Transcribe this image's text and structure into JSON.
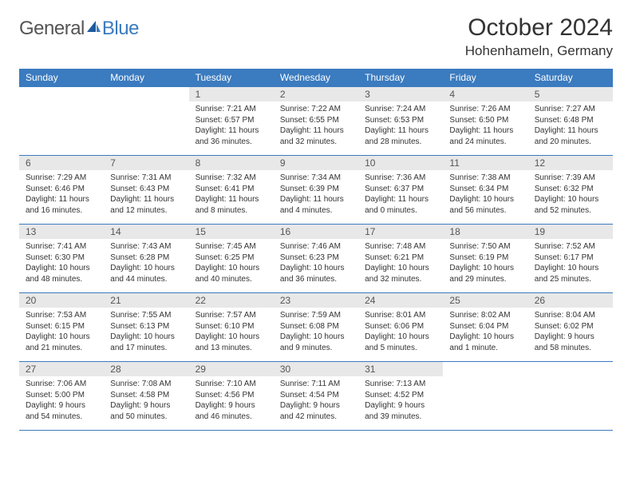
{
  "logo": {
    "general": "General",
    "blue": "Blue"
  },
  "title": {
    "month": "October 2024",
    "location": "Hohenhameln, Germany"
  },
  "colors": {
    "header_bg": "#3b7bbf",
    "header_text": "#ffffff",
    "daynum_bg": "#e8e8e8",
    "border": "#3b7bbf",
    "body_text": "#333333",
    "logo_gray": "#555555",
    "logo_blue": "#3b7bbf"
  },
  "weekdays": [
    "Sunday",
    "Monday",
    "Tuesday",
    "Wednesday",
    "Thursday",
    "Friday",
    "Saturday"
  ],
  "weeks": [
    [
      null,
      null,
      {
        "n": "1",
        "sr": "7:21 AM",
        "ss": "6:57 PM",
        "dl": "11 hours and 36 minutes."
      },
      {
        "n": "2",
        "sr": "7:22 AM",
        "ss": "6:55 PM",
        "dl": "11 hours and 32 minutes."
      },
      {
        "n": "3",
        "sr": "7:24 AM",
        "ss": "6:53 PM",
        "dl": "11 hours and 28 minutes."
      },
      {
        "n": "4",
        "sr": "7:26 AM",
        "ss": "6:50 PM",
        "dl": "11 hours and 24 minutes."
      },
      {
        "n": "5",
        "sr": "7:27 AM",
        "ss": "6:48 PM",
        "dl": "11 hours and 20 minutes."
      }
    ],
    [
      {
        "n": "6",
        "sr": "7:29 AM",
        "ss": "6:46 PM",
        "dl": "11 hours and 16 minutes."
      },
      {
        "n": "7",
        "sr": "7:31 AM",
        "ss": "6:43 PM",
        "dl": "11 hours and 12 minutes."
      },
      {
        "n": "8",
        "sr": "7:32 AM",
        "ss": "6:41 PM",
        "dl": "11 hours and 8 minutes."
      },
      {
        "n": "9",
        "sr": "7:34 AM",
        "ss": "6:39 PM",
        "dl": "11 hours and 4 minutes."
      },
      {
        "n": "10",
        "sr": "7:36 AM",
        "ss": "6:37 PM",
        "dl": "11 hours and 0 minutes."
      },
      {
        "n": "11",
        "sr": "7:38 AM",
        "ss": "6:34 PM",
        "dl": "10 hours and 56 minutes."
      },
      {
        "n": "12",
        "sr": "7:39 AM",
        "ss": "6:32 PM",
        "dl": "10 hours and 52 minutes."
      }
    ],
    [
      {
        "n": "13",
        "sr": "7:41 AM",
        "ss": "6:30 PM",
        "dl": "10 hours and 48 minutes."
      },
      {
        "n": "14",
        "sr": "7:43 AM",
        "ss": "6:28 PM",
        "dl": "10 hours and 44 minutes."
      },
      {
        "n": "15",
        "sr": "7:45 AM",
        "ss": "6:25 PM",
        "dl": "10 hours and 40 minutes."
      },
      {
        "n": "16",
        "sr": "7:46 AM",
        "ss": "6:23 PM",
        "dl": "10 hours and 36 minutes."
      },
      {
        "n": "17",
        "sr": "7:48 AM",
        "ss": "6:21 PM",
        "dl": "10 hours and 32 minutes."
      },
      {
        "n": "18",
        "sr": "7:50 AM",
        "ss": "6:19 PM",
        "dl": "10 hours and 29 minutes."
      },
      {
        "n": "19",
        "sr": "7:52 AM",
        "ss": "6:17 PM",
        "dl": "10 hours and 25 minutes."
      }
    ],
    [
      {
        "n": "20",
        "sr": "7:53 AM",
        "ss": "6:15 PM",
        "dl": "10 hours and 21 minutes."
      },
      {
        "n": "21",
        "sr": "7:55 AM",
        "ss": "6:13 PM",
        "dl": "10 hours and 17 minutes."
      },
      {
        "n": "22",
        "sr": "7:57 AM",
        "ss": "6:10 PM",
        "dl": "10 hours and 13 minutes."
      },
      {
        "n": "23",
        "sr": "7:59 AM",
        "ss": "6:08 PM",
        "dl": "10 hours and 9 minutes."
      },
      {
        "n": "24",
        "sr": "8:01 AM",
        "ss": "6:06 PM",
        "dl": "10 hours and 5 minutes."
      },
      {
        "n": "25",
        "sr": "8:02 AM",
        "ss": "6:04 PM",
        "dl": "10 hours and 1 minute."
      },
      {
        "n": "26",
        "sr": "8:04 AM",
        "ss": "6:02 PM",
        "dl": "9 hours and 58 minutes."
      }
    ],
    [
      {
        "n": "27",
        "sr": "7:06 AM",
        "ss": "5:00 PM",
        "dl": "9 hours and 54 minutes."
      },
      {
        "n": "28",
        "sr": "7:08 AM",
        "ss": "4:58 PM",
        "dl": "9 hours and 50 minutes."
      },
      {
        "n": "29",
        "sr": "7:10 AM",
        "ss": "4:56 PM",
        "dl": "9 hours and 46 minutes."
      },
      {
        "n": "30",
        "sr": "7:11 AM",
        "ss": "4:54 PM",
        "dl": "9 hours and 42 minutes."
      },
      {
        "n": "31",
        "sr": "7:13 AM",
        "ss": "4:52 PM",
        "dl": "9 hours and 39 minutes."
      },
      null,
      null
    ]
  ],
  "labels": {
    "sunrise": "Sunrise:",
    "sunset": "Sunset:",
    "daylight": "Daylight:"
  }
}
